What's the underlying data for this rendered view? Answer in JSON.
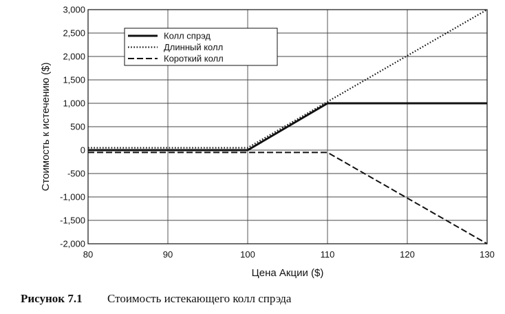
{
  "chart_data": {
    "type": "line",
    "xlabel": "Цена Акции ($)",
    "ylabel": "Стоимость к истечению ($)",
    "xlim": [
      80,
      130
    ],
    "ylim": [
      -2000,
      3000
    ],
    "x_ticks": [
      "80",
      "90",
      "100",
      "110",
      "120",
      "130"
    ],
    "y_ticks": [
      "3,000",
      "2,500",
      "2,000",
      "1,500",
      "1,000",
      "500",
      "0",
      "-500",
      "-1,000",
      "-1,500",
      "-2,000"
    ],
    "grid": true,
    "legend_position": "top-left",
    "series": [
      {
        "name": "Колл спрэд",
        "style": "solid",
        "x": [
          80,
          100,
          110,
          130
        ],
        "y": [
          0,
          0,
          1000,
          1000
        ]
      },
      {
        "name": "Длинный колл",
        "style": "dotted",
        "x": [
          80,
          100,
          130
        ],
        "y": [
          50,
          50,
          3000
        ]
      },
      {
        "name": "Короткий колл",
        "style": "dashed",
        "x": [
          80,
          110,
          130
        ],
        "y": [
          -50,
          -50,
          -2000
        ]
      }
    ]
  },
  "caption": {
    "number": "Рисунок 7.1",
    "text": "Стоимость истекающего колл спрэда"
  }
}
